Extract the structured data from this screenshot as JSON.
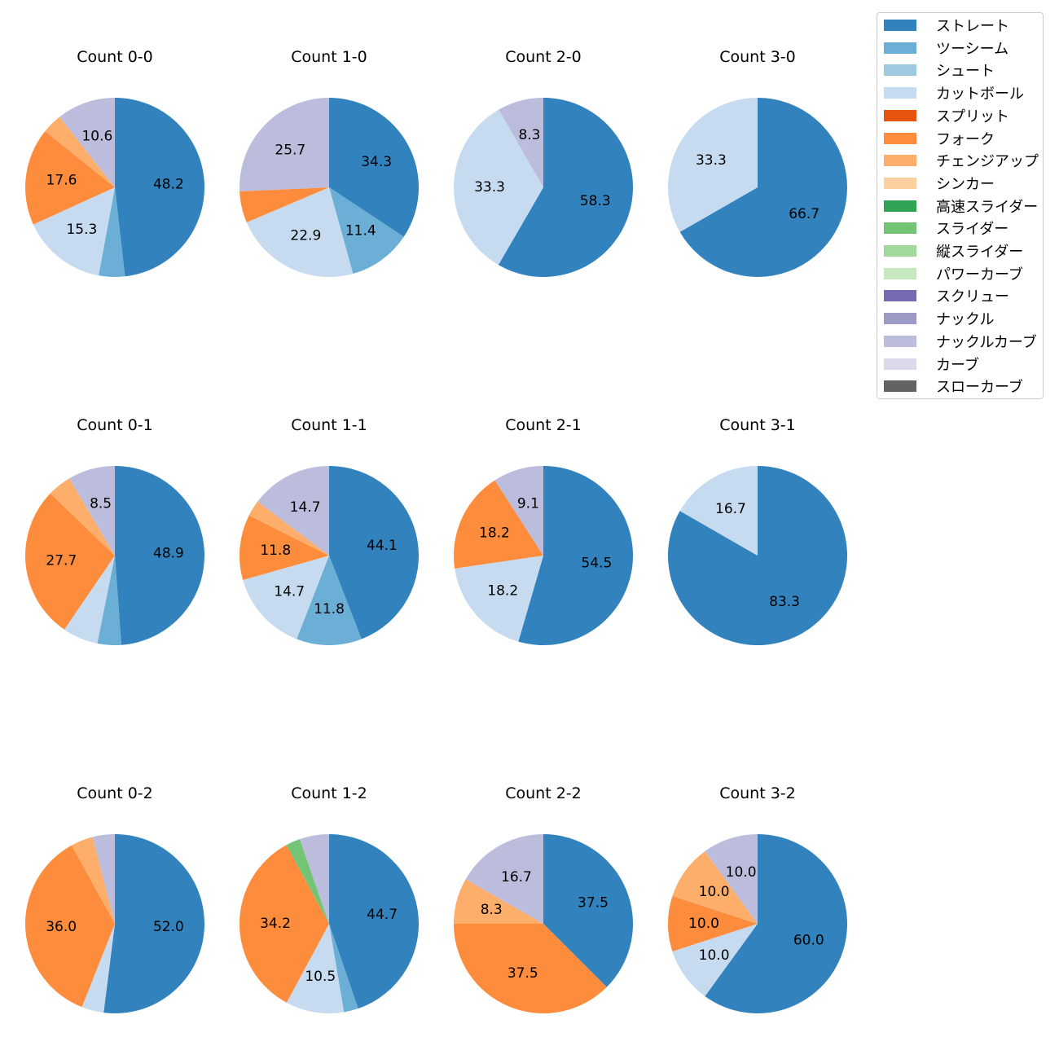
{
  "chart_data": {
    "type": "pie",
    "legend_position": "top-right",
    "pitch_types": [
      {
        "name": "ストレート",
        "color": "#3182bd"
      },
      {
        "name": "ツーシーム",
        "color": "#6baed6"
      },
      {
        "name": "シュート",
        "color": "#9ecae1"
      },
      {
        "name": "カットボール",
        "color": "#c6dbef"
      },
      {
        "name": "スプリット",
        "color": "#e6550d"
      },
      {
        "name": "フォーク",
        "color": "#fd8d3c"
      },
      {
        "name": "チェンジアップ",
        "color": "#fdae6b"
      },
      {
        "name": "シンカー",
        "color": "#fdd0a2"
      },
      {
        "name": "高速スライダー",
        "color": "#31a354"
      },
      {
        "name": "スライダー",
        "color": "#74c476"
      },
      {
        "name": "縦スライダー",
        "color": "#a1d99b"
      },
      {
        "name": "パワーカーブ",
        "color": "#c7e9c0"
      },
      {
        "name": "スクリュー",
        "color": "#756bb1"
      },
      {
        "name": "ナックル",
        "color": "#9e9ac8"
      },
      {
        "name": "ナックルカーブ",
        "color": "#bcbddc"
      },
      {
        "name": "カーブ",
        "color": "#dadaeb"
      },
      {
        "name": "スローカーブ",
        "color": "#636363"
      }
    ],
    "charts": [
      {
        "title": "Count 0-0",
        "slices": [
          {
            "type": "ストレート",
            "value": 48.2,
            "label": "48.2"
          },
          {
            "type": "ツーシーム",
            "value": 4.7,
            "label": ""
          },
          {
            "type": "カットボール",
            "value": 15.3,
            "label": "15.3"
          },
          {
            "type": "フォーク",
            "value": 17.6,
            "label": "17.6"
          },
          {
            "type": "チェンジアップ",
            "value": 3.6,
            "label": ""
          },
          {
            "type": "ナックルカーブ",
            "value": 10.6,
            "label": "10.6"
          }
        ]
      },
      {
        "title": "Count 1-0",
        "slices": [
          {
            "type": "ストレート",
            "value": 34.3,
            "label": "34.3"
          },
          {
            "type": "ツーシーム",
            "value": 11.4,
            "label": "11.4"
          },
          {
            "type": "カットボール",
            "value": 22.9,
            "label": "22.9"
          },
          {
            "type": "フォーク",
            "value": 5.7,
            "label": ""
          },
          {
            "type": "ナックルカーブ",
            "value": 25.7,
            "label": "25.7"
          }
        ]
      },
      {
        "title": "Count 2-0",
        "slices": [
          {
            "type": "ストレート",
            "value": 58.3,
            "label": "58.3"
          },
          {
            "type": "カットボール",
            "value": 33.3,
            "label": "33.3"
          },
          {
            "type": "ナックルカーブ",
            "value": 8.3,
            "label": "8.3"
          }
        ]
      },
      {
        "title": "Count 3-0",
        "slices": [
          {
            "type": "ストレート",
            "value": 66.7,
            "label": "66.7"
          },
          {
            "type": "カットボール",
            "value": 33.3,
            "label": "33.3"
          }
        ]
      },
      {
        "title": "Count 0-1",
        "slices": [
          {
            "type": "ストレート",
            "value": 48.9,
            "label": "48.9"
          },
          {
            "type": "ツーシーム",
            "value": 4.3,
            "label": ""
          },
          {
            "type": "カットボール",
            "value": 6.4,
            "label": ""
          },
          {
            "type": "フォーク",
            "value": 27.7,
            "label": "27.7"
          },
          {
            "type": "チェンジアップ",
            "value": 4.3,
            "label": ""
          },
          {
            "type": "ナックルカーブ",
            "value": 8.5,
            "label": "8.5"
          }
        ]
      },
      {
        "title": "Count 1-1",
        "slices": [
          {
            "type": "ストレート",
            "value": 44.1,
            "label": "44.1"
          },
          {
            "type": "ツーシーム",
            "value": 11.8,
            "label": "11.8"
          },
          {
            "type": "カットボール",
            "value": 14.7,
            "label": "14.7"
          },
          {
            "type": "フォーク",
            "value": 11.8,
            "label": "11.8"
          },
          {
            "type": "チェンジアップ",
            "value": 2.9,
            "label": ""
          },
          {
            "type": "ナックルカーブ",
            "value": 14.7,
            "label": "14.7"
          }
        ]
      },
      {
        "title": "Count 2-1",
        "slices": [
          {
            "type": "ストレート",
            "value": 54.5,
            "label": "54.5"
          },
          {
            "type": "カットボール",
            "value": 18.2,
            "label": "18.2"
          },
          {
            "type": "フォーク",
            "value": 18.2,
            "label": "18.2"
          },
          {
            "type": "ナックルカーブ",
            "value": 9.1,
            "label": "9.1"
          }
        ]
      },
      {
        "title": "Count 3-1",
        "slices": [
          {
            "type": "ストレート",
            "value": 83.3,
            "label": "83.3"
          },
          {
            "type": "カットボール",
            "value": 16.7,
            "label": "16.7"
          }
        ]
      },
      {
        "title": "Count 0-2",
        "slices": [
          {
            "type": "ストレート",
            "value": 52.0,
            "label": "52.0"
          },
          {
            "type": "カットボール",
            "value": 4.0,
            "label": ""
          },
          {
            "type": "フォーク",
            "value": 36.0,
            "label": "36.0"
          },
          {
            "type": "チェンジアップ",
            "value": 4.0,
            "label": ""
          },
          {
            "type": "ナックルカーブ",
            "value": 4.0,
            "label": ""
          }
        ]
      },
      {
        "title": "Count 1-2",
        "slices": [
          {
            "type": "ストレート",
            "value": 44.7,
            "label": "44.7"
          },
          {
            "type": "ツーシーム",
            "value": 2.6,
            "label": ""
          },
          {
            "type": "カットボール",
            "value": 10.5,
            "label": "10.5"
          },
          {
            "type": "フォーク",
            "value": 34.2,
            "label": "34.2"
          },
          {
            "type": "スライダー",
            "value": 2.6,
            "label": ""
          },
          {
            "type": "ナックルカーブ",
            "value": 5.3,
            "label": ""
          }
        ]
      },
      {
        "title": "Count 2-2",
        "slices": [
          {
            "type": "ストレート",
            "value": 37.5,
            "label": "37.5"
          },
          {
            "type": "フォーク",
            "value": 37.5,
            "label": "37.5"
          },
          {
            "type": "チェンジアップ",
            "value": 8.3,
            "label": "8.3"
          },
          {
            "type": "ナックルカーブ",
            "value": 16.7,
            "label": "16.7"
          }
        ]
      },
      {
        "title": "Count 3-2",
        "slices": [
          {
            "type": "ストレート",
            "value": 60.0,
            "label": "60.0"
          },
          {
            "type": "カットボール",
            "value": 10.0,
            "label": "10.0"
          },
          {
            "type": "フォーク",
            "value": 10.0,
            "label": "10.0"
          },
          {
            "type": "チェンジアップ",
            "value": 10.0,
            "label": "10.0"
          },
          {
            "type": "ナックルカーブ",
            "value": 10.0,
            "label": "10.0"
          }
        ]
      }
    ]
  }
}
